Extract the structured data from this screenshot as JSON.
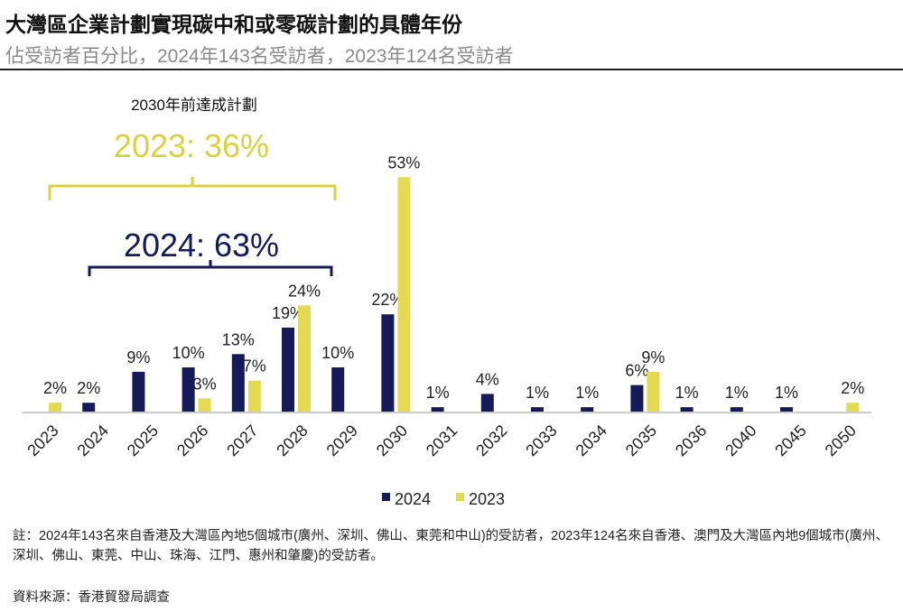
{
  "header": {
    "title": "大灣區企業計劃實現碳中和或零碳計劃的具體年份",
    "subtitle": "佔受訪者百分比，2024年143名受訪者，2023年124名受訪者"
  },
  "chart_data": {
    "type": "bar",
    "title": "大灣區企業計劃實現碳中和或零碳計劃的具體年份",
    "categories": [
      "2023",
      "2024",
      "2025",
      "2026",
      "2027",
      "2028",
      "2029",
      "2030",
      "2031",
      "2032",
      "2033",
      "2034",
      "2035",
      "2036",
      "2040",
      "2045",
      "2050"
    ],
    "series": [
      {
        "name": "2024",
        "color": "#141a5a",
        "values": [
          null,
          2,
          9,
          10,
          13,
          19,
          10,
          22,
          1,
          4,
          1,
          1,
          6,
          1,
          1,
          1,
          null
        ]
      },
      {
        "name": "2023",
        "color": "#e3da4f",
        "values": [
          2,
          null,
          null,
          3,
          7,
          24,
          null,
          53,
          null,
          null,
          null,
          null,
          9,
          null,
          null,
          null,
          2
        ]
      }
    ],
    "value_suffix": "%",
    "ylim": [
      0,
      55
    ],
    "grid": false,
    "legend": "bottom",
    "annotations": {
      "group_label": "2030年前達成計劃",
      "label_2023": "2023: 36%",
      "label_2024": "2024: 63%",
      "color_2023": "#d9d23c",
      "color_2024": "#141a5a"
    }
  },
  "footer": {
    "note": "註：2024年143名來自香港及大灣區內地5個城市(廣州、深圳、佛山、東莞和中山)的受訪者，2023年124名來自香港、澳門及大灣區內地9個城市(廣州、深圳、佛山、東莞、中山、珠海、江門、惠州和肇慶)的受訪者。",
    "source": "資料來源：香港貿發局調查"
  }
}
